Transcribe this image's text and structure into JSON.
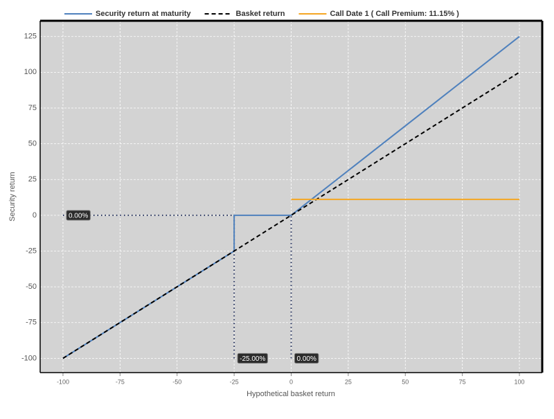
{
  "chart_data": {
    "type": "line",
    "x_label": "Hypothetical basket return",
    "y_label": "Security return",
    "xlim": [
      -110,
      110
    ],
    "xticks": [
      -100,
      -75,
      -50,
      -25,
      0,
      25,
      50,
      75,
      100
    ],
    "ylim": [
      -110,
      136
    ],
    "yticks": [
      -100,
      -75,
      -50,
      -25,
      0,
      25,
      50,
      75,
      100,
      125
    ],
    "grid": true,
    "legend": "top",
    "series": [
      {
        "name": "Security return at maturity",
        "color": "#4f81bd",
        "line_style": "solid",
        "x": [
          -100,
          -25,
          -25,
          0,
          100
        ],
        "values": [
          -100,
          -25,
          0,
          0,
          125
        ]
      },
      {
        "name": "Basket return",
        "color": "#000000",
        "line_style": "dashed",
        "x": [
          -100,
          100
        ],
        "values": [
          -100,
          100
        ]
      },
      {
        "name": "Call Date 1 ( Call Premium: 11.15% )",
        "color": "#f5a623",
        "line_style": "solid",
        "x": [
          0,
          100
        ],
        "values": [
          11.15,
          11.15
        ]
      }
    ],
    "annotations": [
      {
        "label": "0.00%",
        "x": [
          -100,
          -25
        ],
        "y": [
          0,
          0
        ]
      },
      {
        "label": "-25.00%",
        "x": [
          -25,
          -25
        ],
        "y": [
          -100,
          0
        ]
      },
      {
        "label": "0.00%",
        "x": [
          0,
          0
        ],
        "y": [
          -100,
          0
        ]
      }
    ]
  }
}
